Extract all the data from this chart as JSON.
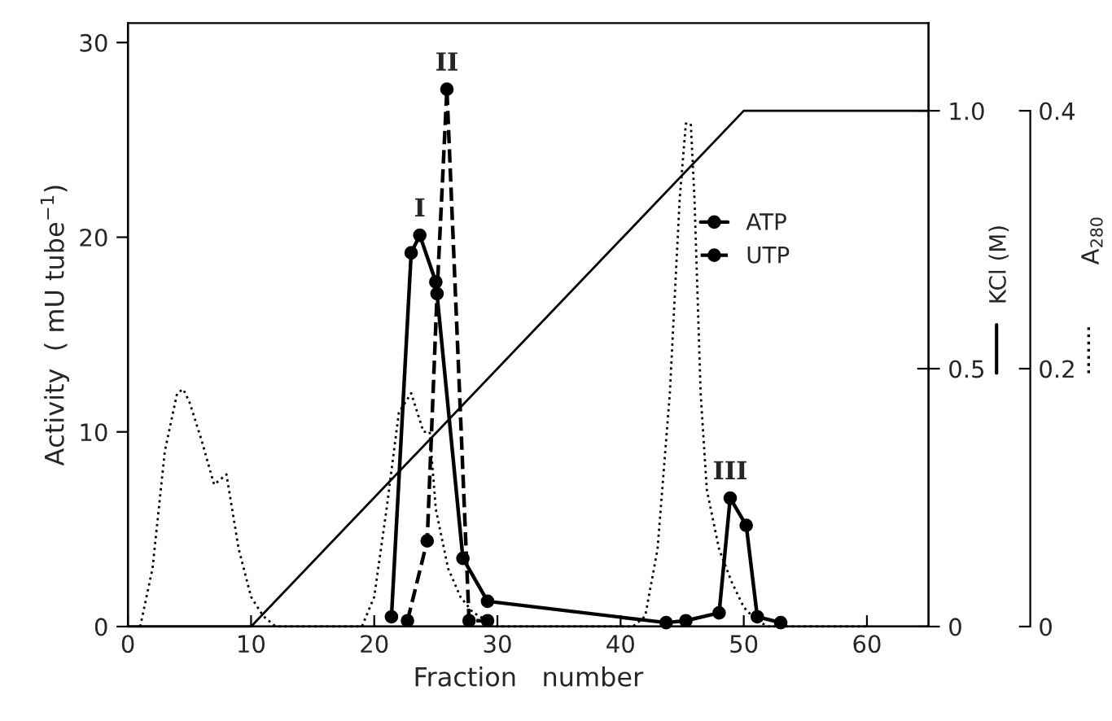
{
  "chart_data": {
    "type": "line",
    "xlabel": "Fraction   number",
    "ylabel": "Activity  ( mU tube$^{−1}$)",
    "y2label": "KCl (M)",
    "y3label": "A$_{280}$",
    "xlim": [
      0,
      65
    ],
    "xticks": [
      0,
      10,
      20,
      30,
      40,
      50,
      60
    ],
    "ylim": [
      0,
      31
    ],
    "yticks": [
      0,
      10,
      20,
      30
    ],
    "y2lim": [
      0,
      1.17
    ],
    "y2ticks": [
      0,
      0.5,
      {
        "value": 1.0,
        "label": "1.0"
      }
    ],
    "y3lim": [
      0,
      0.468
    ],
    "y3ticks": [
      0,
      0.2,
      0.4
    ],
    "legend": "right",
    "grid": false,
    "series": [
      {
        "name": "ATP",
        "color": "#000000",
        "marker": "circle",
        "line_style": "solid",
        "x": [
          21.4,
          23.0,
          23.7,
          25.0,
          27.2,
          29.2,
          43.7,
          45.3,
          48.0,
          48.9,
          50.2,
          51.1,
          53.0
        ],
        "values": [
          0.5,
          19.2,
          20.1,
          17.7,
          3.5,
          1.3,
          0.2,
          0.3,
          0.7,
          6.6,
          5.2,
          0.5,
          0.2
        ]
      },
      {
        "name": "UTP",
        "color": "#000000",
        "marker": "circle",
        "line_style": "dashed",
        "x": [
          22.7,
          24.3,
          25.1,
          25.9,
          27.7,
          29.2
        ],
        "values": [
          0.3,
          4.4,
          17.1,
          27.6,
          0.3,
          0.3
        ]
      },
      {
        "axis": "y2",
        "color": "#000000",
        "marker": "none",
        "line_style": "solid",
        "x": [
          0,
          10,
          50,
          65
        ],
        "values": [
          0,
          0,
          1.0,
          1.0
        ]
      },
      {
        "axis": "y3",
        "color": "#000000",
        "marker": "none",
        "line_style": "dotted",
        "x": [
          1,
          2,
          3,
          4,
          4.5,
          5,
          6,
          7,
          8,
          9,
          10,
          11,
          12,
          19,
          20,
          21,
          22,
          23,
          24,
          24.5,
          25,
          26,
          27,
          28,
          30,
          41,
          42,
          43,
          44,
          44.8,
          45.3,
          45.7,
          46,
          46.5,
          47,
          48,
          49,
          50,
          51,
          52,
          60
        ],
        "values": [
          0,
          0.045,
          0.136,
          0.181,
          0.184,
          0.174,
          0.144,
          0.11,
          0.118,
          0.06,
          0.023,
          0.008,
          0,
          0,
          0.023,
          0.091,
          0.166,
          0.181,
          0.151,
          0.151,
          0.091,
          0.045,
          0.023,
          0.011,
          0,
          0,
          0.008,
          0.06,
          0.181,
          0.332,
          0.39,
          0.39,
          0.332,
          0.181,
          0.106,
          0.06,
          0.035,
          0.015,
          0.005,
          0,
          0
        ]
      }
    ],
    "annotations": [
      {
        "text": "I",
        "x": 23.7,
        "y": 20.1
      },
      {
        "text": "II",
        "x": 25.9,
        "y": 27.6
      },
      {
        "text": "III",
        "x": 48.9,
        "y": 6.6
      }
    ]
  }
}
